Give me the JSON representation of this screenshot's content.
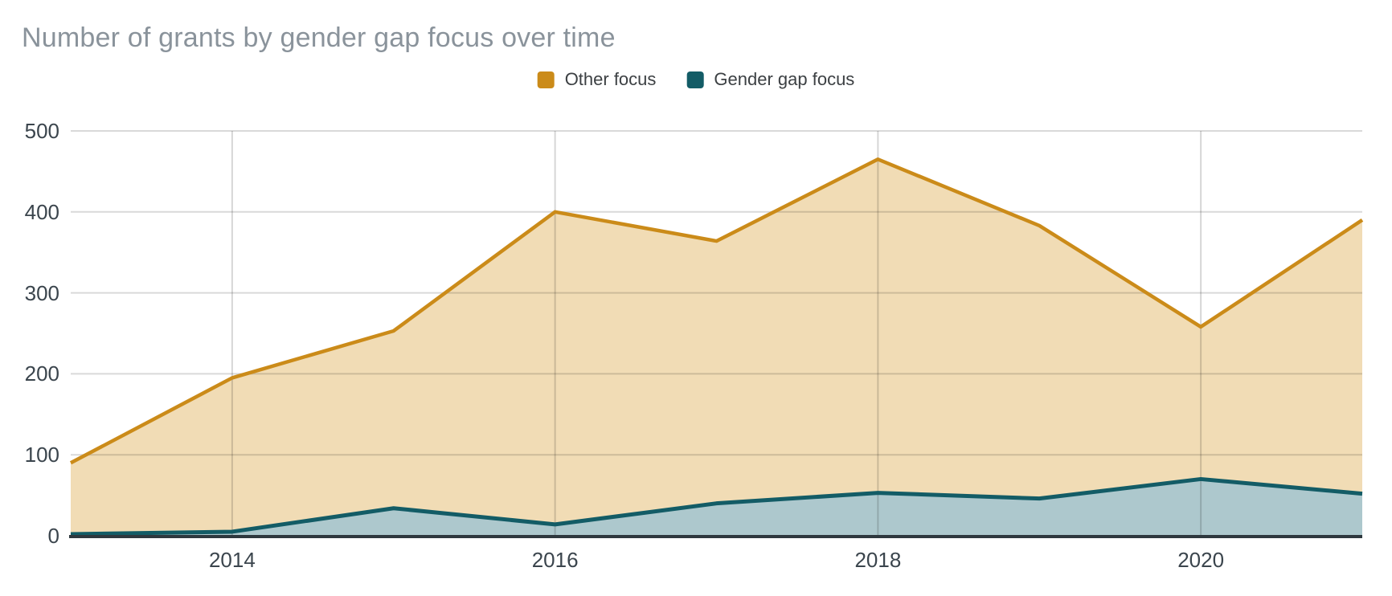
{
  "chart_data": {
    "type": "area",
    "area_mode": "layered",
    "title": "Number of grants by gender gap focus over time",
    "x": [
      2013,
      2014,
      2015,
      2016,
      2017,
      2018,
      2019,
      2020,
      2021
    ],
    "series": [
      {
        "name": "Other focus",
        "line_color": "#CB8B19",
        "fill_color": "#F1DCB5",
        "values": [
          90,
          195,
          253,
          400,
          364,
          465,
          383,
          258,
          390
        ]
      },
      {
        "name": "Gender gap focus",
        "line_color": "#135C66",
        "fill_color": "#ADC8CD",
        "values": [
          2,
          5,
          34,
          14,
          40,
          53,
          46,
          70,
          52
        ]
      }
    ],
    "xlabel": "",
    "ylabel": "",
    "ylim": [
      0,
      500
    ],
    "yticks": [
      0,
      100,
      200,
      300,
      400,
      500
    ],
    "xticks": [
      2014,
      2016,
      2018,
      2020
    ],
    "grid": true,
    "legend_position": "top",
    "colors": {
      "title_text": "#8A939B",
      "tick_text": "#3B454D",
      "legend_text": "#3C4043",
      "gridline": "#D9D9D9",
      "axis_baseline": "#2E383E",
      "background": "#FFFFFF"
    }
  }
}
